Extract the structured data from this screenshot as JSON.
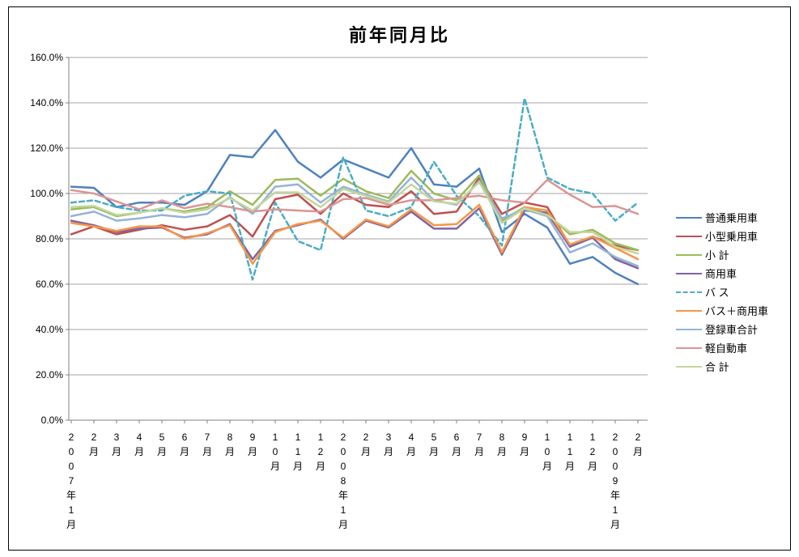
{
  "window": {
    "title": "前年同月比"
  },
  "chart_data": {
    "type": "line",
    "title": "前年同月比",
    "grid": true,
    "legend_position": "right",
    "y_axis": {
      "min": 0,
      "max": 160,
      "step": 20
    },
    "y_tick_labels": [
      "0.0%",
      "20.0%",
      "40.0%",
      "60.0%",
      "80.0%",
      "100.0%",
      "120.0%",
      "140.0%",
      "160.0%"
    ],
    "x_labels": [
      "2007年1月",
      "2月",
      "3月",
      "4月",
      "5月",
      "6月",
      "7月",
      "8月",
      "9月",
      "10月",
      "11月",
      "12月",
      "2008年1月",
      "2月",
      "3月",
      "4月",
      "5月",
      "6月",
      "7月",
      "8月",
      "9月",
      "10月",
      "11月",
      "12月",
      "2009年1月",
      "2月"
    ],
    "series": [
      {
        "name": "普通乗用車",
        "color": "#4F81BD",
        "dash": false,
        "values": [
          103,
          102.5,
          94,
          96,
          96,
          95,
          101,
          117,
          116,
          128,
          114,
          107,
          115,
          111,
          107,
          120,
          104,
          103,
          111,
          83,
          91,
          85,
          69,
          72,
          65,
          60
        ]
      },
      {
        "name": "小型乗用車",
        "color": "#C0504D",
        "dash": false,
        "values": [
          82,
          85.5,
          82,
          84,
          86,
          84,
          85.5,
          90.5,
          81,
          97.5,
          99.5,
          91,
          100,
          95,
          94,
          101,
          91,
          92,
          107,
          91,
          96,
          94,
          77,
          81,
          77,
          75
        ]
      },
      {
        "name": "小  計",
        "color": "#9BBB59",
        "dash": false,
        "values": [
          93,
          94,
          90,
          91.5,
          93.5,
          92,
          94,
          101,
          95,
          106,
          106.5,
          99,
          106.5,
          101,
          98,
          110,
          100,
          97,
          108,
          88,
          94,
          91,
          82,
          84,
          78,
          75
        ]
      },
      {
        "name": "商用車",
        "color": "#8064A2",
        "dash": false,
        "values": [
          88,
          86,
          83,
          84.5,
          85,
          80.5,
          82,
          86.5,
          71,
          83.5,
          86,
          88.5,
          80,
          88,
          85,
          92,
          84.5,
          84.5,
          93.5,
          73,
          92.5,
          91.5,
          76.5,
          80.5,
          71,
          67
        ]
      },
      {
        "name": "バ  ス",
        "color": "#4BACC6",
        "dash": true,
        "values": [
          96,
          97,
          94,
          92.5,
          92.5,
          99,
          101,
          100,
          62,
          96,
          79,
          75,
          116,
          92.5,
          90,
          94,
          114,
          99,
          90,
          77,
          142,
          107,
          102,
          100,
          88,
          96
        ]
      },
      {
        "name": "バス＋商用車",
        "color": "#F79646",
        "dash": false,
        "values": [
          87,
          85.5,
          83.5,
          85.5,
          85.5,
          80,
          82.5,
          86,
          69,
          83,
          86.5,
          88,
          80.5,
          88.5,
          85.5,
          93,
          86,
          86.5,
          95,
          74,
          94,
          92.5,
          77.5,
          81,
          76,
          71
        ]
      },
      {
        "name": "登録車合計",
        "color": "#95B3D7",
        "dash": false,
        "values": [
          90,
          92,
          88,
          89,
          90.5,
          89.5,
          91,
          98.5,
          91,
          103,
          104,
          96,
          103,
          99.5,
          96.5,
          107,
          97,
          95,
          105.5,
          89,
          93,
          90,
          74,
          78,
          72,
          68
        ]
      },
      {
        "name": "軽自動車",
        "color": "#D99694",
        "dash": false,
        "values": [
          101.5,
          100,
          96.5,
          93,
          97,
          93.5,
          95.5,
          94,
          92,
          93,
          92.5,
          92,
          97.5,
          98,
          95,
          97,
          97,
          98,
          99,
          97,
          96,
          106,
          99.5,
          94,
          94.5,
          91
        ]
      },
      {
        "name": "合  計",
        "color": "#C3D69B",
        "dash": false,
        "values": [
          94,
          94.5,
          90.5,
          91.5,
          93.5,
          91.5,
          93,
          98,
          92.5,
          100.5,
          100.5,
          94,
          102,
          99,
          96,
          104,
          96.5,
          95.5,
          105,
          87,
          93.5,
          90.5,
          83,
          83,
          76.5,
          73.5
        ]
      }
    ],
    "axis_color": "#808080",
    "grid_color": "#A6A6A6"
  }
}
